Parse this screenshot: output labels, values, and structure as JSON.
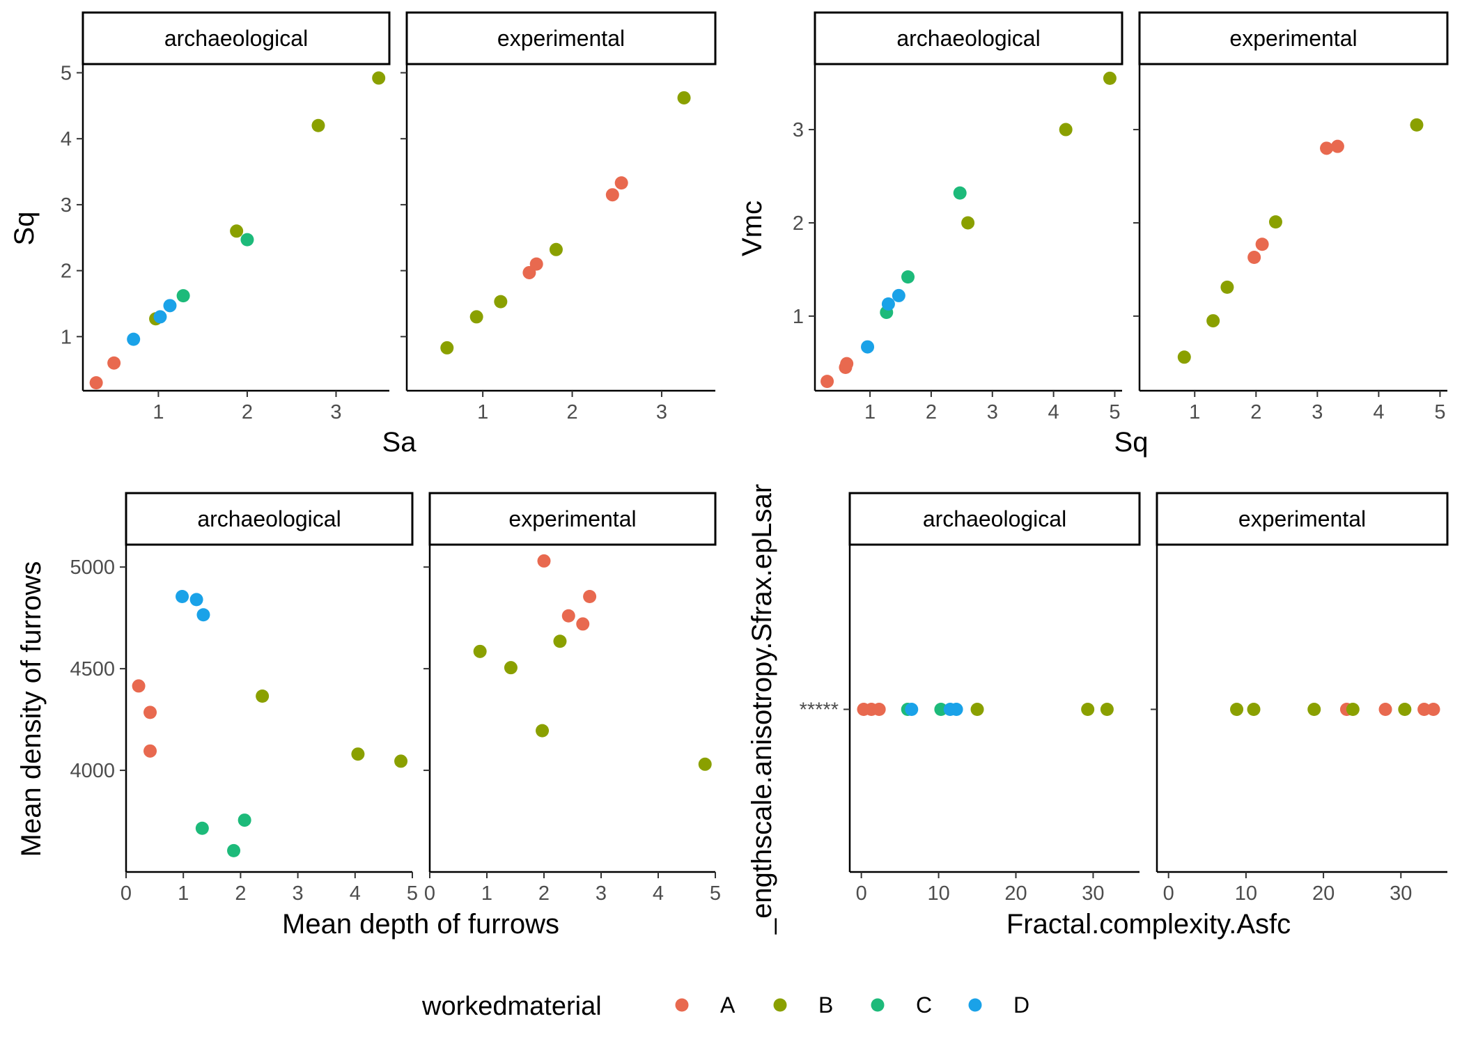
{
  "colors": {
    "A": "#F8766D",
    "B": "#7CAE00",
    "C": "#00BE67",
    "D": "#00A9FF",
    "A_render": "#E8694F",
    "B_render": "#8AA000",
    "C_render": "#1DBA7A",
    "D_render": "#1AA2E8"
  },
  "legend": {
    "title": "workedmaterial",
    "items": [
      "A",
      "B",
      "C",
      "D"
    ]
  },
  "chart_data": [
    {
      "type": "scatter",
      "xlabel": "Sa",
      "ylabel": "Sq",
      "facets": [
        "archaeological",
        "experimental"
      ],
      "xlim": [
        0.15,
        3.6
      ],
      "ylim": [
        0.18,
        5.1
      ],
      "xticks": [
        1,
        2,
        3
      ],
      "yticks": [
        1,
        2,
        3,
        4,
        5
      ],
      "ytick_labels": [
        "1",
        "2",
        "3",
        "4",
        "5"
      ],
      "series": [
        {
          "facet": "archaeological",
          "workedmaterial": "A",
          "points": [
            [
              0.3,
              0.3
            ],
            [
              0.5,
              0.6
            ]
          ]
        },
        {
          "facet": "archaeological",
          "workedmaterial": "B",
          "points": [
            [
              0.97,
              1.27
            ],
            [
              1.88,
              2.6
            ],
            [
              2.8,
              4.2
            ],
            [
              3.48,
              4.92
            ]
          ]
        },
        {
          "facet": "archaeological",
          "workedmaterial": "C",
          "points": [
            [
              1.28,
              1.62
            ],
            [
              2.0,
              2.47
            ]
          ]
        },
        {
          "facet": "archaeological",
          "workedmaterial": "D",
          "points": [
            [
              0.72,
              0.96
            ],
            [
              1.02,
              1.3
            ],
            [
              1.13,
              1.47
            ]
          ]
        },
        {
          "facet": "experimental",
          "workedmaterial": "A",
          "points": [
            [
              1.52,
              1.97
            ],
            [
              1.6,
              2.1
            ],
            [
              2.45,
              3.15
            ],
            [
              2.55,
              3.33
            ]
          ]
        },
        {
          "facet": "experimental",
          "workedmaterial": "B",
          "points": [
            [
              0.6,
              0.83
            ],
            [
              0.93,
              1.3
            ],
            [
              1.2,
              1.53
            ],
            [
              1.82,
              2.32
            ],
            [
              3.25,
              4.62
            ]
          ]
        }
      ]
    },
    {
      "type": "scatter",
      "xlabel": "Sq",
      "ylabel": "Vmc",
      "facets": [
        "archaeological",
        "experimental"
      ],
      "xlim": [
        0.1,
        5.12
      ],
      "ylim": [
        0.2,
        3.68
      ],
      "xticks": [
        1,
        2,
        3,
        4,
        5
      ],
      "yticks": [
        1,
        2,
        3
      ],
      "ytick_labels": [
        "1",
        "2",
        "3"
      ],
      "series": [
        {
          "facet": "archaeological",
          "workedmaterial": "A",
          "points": [
            [
              0.3,
              0.3
            ],
            [
              0.6,
              0.45
            ],
            [
              0.62,
              0.49
            ]
          ]
        },
        {
          "facet": "archaeological",
          "workedmaterial": "B",
          "points": [
            [
              2.6,
              2.0
            ],
            [
              4.2,
              3.0
            ],
            [
              4.92,
              3.55
            ]
          ]
        },
        {
          "facet": "archaeological",
          "workedmaterial": "C",
          "points": [
            [
              1.27,
              1.04
            ],
            [
              1.62,
              1.42
            ],
            [
              2.47,
              2.32
            ]
          ]
        },
        {
          "facet": "archaeological",
          "workedmaterial": "D",
          "points": [
            [
              0.96,
              0.67
            ],
            [
              1.3,
              1.13
            ],
            [
              1.47,
              1.22
            ]
          ]
        },
        {
          "facet": "experimental",
          "workedmaterial": "A",
          "points": [
            [
              1.97,
              1.63
            ],
            [
              2.1,
              1.77
            ],
            [
              3.15,
              2.8
            ],
            [
              3.33,
              2.82
            ]
          ]
        },
        {
          "facet": "experimental",
          "workedmaterial": "B",
          "points": [
            [
              0.83,
              0.56
            ],
            [
              1.3,
              0.95
            ],
            [
              1.53,
              1.31
            ],
            [
              2.32,
              2.01
            ],
            [
              4.62,
              3.05
            ]
          ]
        }
      ]
    },
    {
      "type": "scatter",
      "xlabel": "Mean depth of furrows",
      "ylabel": "Mean density of furrows",
      "facets": [
        "archaeological",
        "experimental"
      ],
      "xlim": [
        0,
        5
      ],
      "ylim": [
        3500,
        5100
      ],
      "xticks": [
        0,
        1,
        2,
        3,
        4,
        5
      ],
      "yticks": [
        4000,
        4500,
        5000
      ],
      "ytick_labels": [
        "4000",
        "4500",
        "5000"
      ],
      "series": [
        {
          "facet": "archaeological",
          "workedmaterial": "A",
          "points": [
            [
              0.22,
              4415
            ],
            [
              0.42,
              4285
            ],
            [
              0.42,
              4095
            ]
          ]
        },
        {
          "facet": "archaeological",
          "workedmaterial": "B",
          "points": [
            [
              2.38,
              4365
            ],
            [
              4.05,
              4080
            ],
            [
              4.8,
              4045
            ]
          ]
        },
        {
          "facet": "archaeological",
          "workedmaterial": "C",
          "points": [
            [
              1.33,
              3715
            ],
            [
              1.88,
              3605
            ],
            [
              2.07,
              3755
            ]
          ]
        },
        {
          "facet": "archaeological",
          "workedmaterial": "D",
          "points": [
            [
              0.98,
              4855
            ],
            [
              1.23,
              4840
            ],
            [
              1.35,
              4765
            ]
          ]
        },
        {
          "facet": "experimental",
          "workedmaterial": "A",
          "points": [
            [
              2.0,
              5030
            ],
            [
              2.43,
              4760
            ],
            [
              2.68,
              4720
            ],
            [
              2.8,
              4855
            ]
          ]
        },
        {
          "facet": "experimental",
          "workedmaterial": "B",
          "points": [
            [
              0.88,
              4585
            ],
            [
              1.42,
              4505
            ],
            [
              1.97,
              4195
            ],
            [
              2.28,
              4635
            ],
            [
              4.82,
              4030
            ]
          ]
        }
      ]
    },
    {
      "type": "scatter",
      "xlabel": "Fractal.complexity.Asfc",
      "ylabel": "_engthscale.anisotropy.Sfrax.epLsar",
      "facets": [
        "archaeological",
        "experimental"
      ],
      "xlim": [
        -1.5,
        36
      ],
      "ylim": [
        0,
        1
      ],
      "xticks": [
        0,
        10,
        20,
        30
      ],
      "yticks": [
        0.5
      ],
      "ytick_labels": [
        "*****"
      ],
      "series": [
        {
          "facet": "archaeological",
          "workedmaterial": "A",
          "points": [
            [
              0.3,
              0.5
            ],
            [
              1.3,
              0.5
            ],
            [
              2.3,
              0.5
            ]
          ]
        },
        {
          "facet": "archaeological",
          "workedmaterial": "B",
          "points": [
            [
              15.0,
              0.5
            ],
            [
              29.3,
              0.5
            ],
            [
              31.8,
              0.5
            ]
          ]
        },
        {
          "facet": "archaeological",
          "workedmaterial": "C",
          "points": [
            [
              6.0,
              0.5
            ],
            [
              10.3,
              0.5
            ]
          ]
        },
        {
          "facet": "archaeological",
          "workedmaterial": "D",
          "points": [
            [
              6.5,
              0.5
            ],
            [
              11.5,
              0.5
            ],
            [
              12.3,
              0.5
            ]
          ]
        },
        {
          "facet": "experimental",
          "workedmaterial": "A",
          "points": [
            [
              23.0,
              0.5
            ],
            [
              28.0,
              0.5
            ],
            [
              33.0,
              0.5
            ],
            [
              34.2,
              0.5
            ]
          ]
        },
        {
          "facet": "experimental",
          "workedmaterial": "B",
          "points": [
            [
              8.8,
              0.5
            ],
            [
              11.0,
              0.5
            ],
            [
              18.8,
              0.5
            ],
            [
              23.8,
              0.5
            ],
            [
              30.5,
              0.5
            ]
          ]
        }
      ]
    }
  ]
}
